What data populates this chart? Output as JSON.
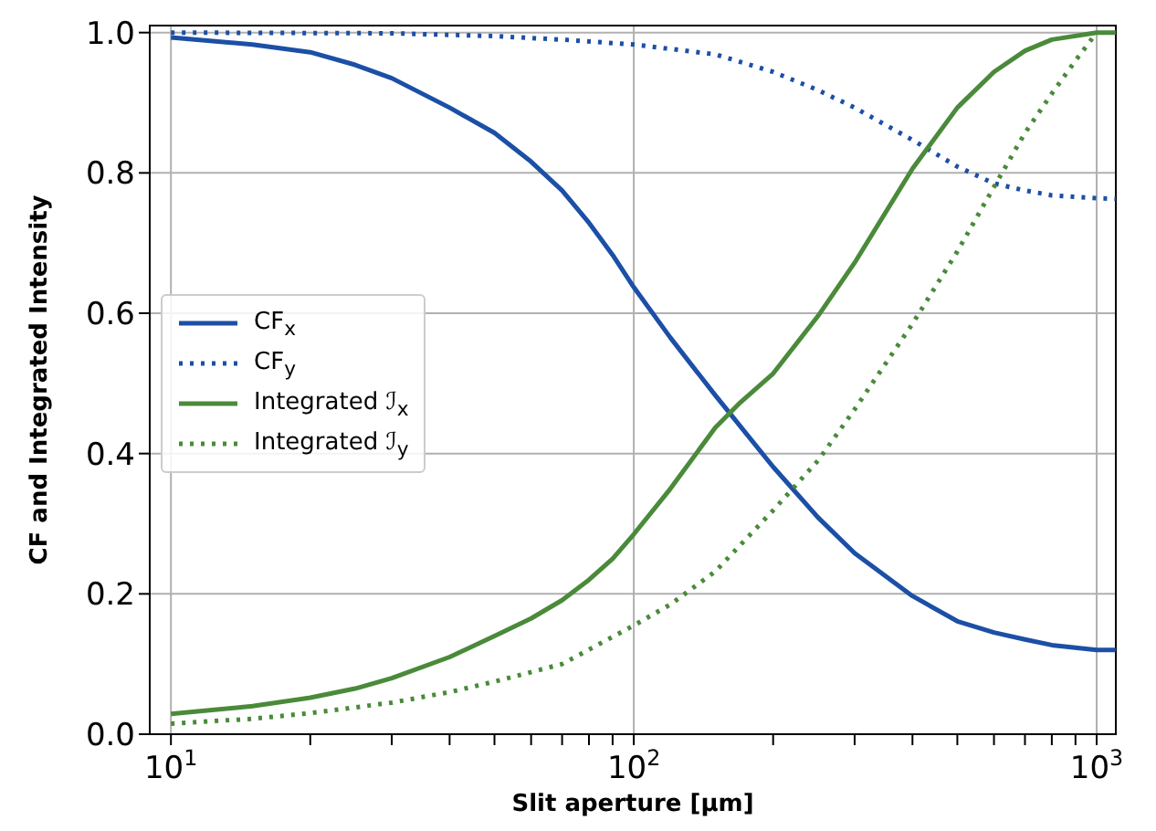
{
  "chart_data": {
    "type": "line",
    "xlabel": "Slit aperture [μm]",
    "ylabel": "CF and Integrated Intensity",
    "log": "x",
    "grid": true,
    "legend": "left",
    "marker": "none",
    "xlim": [
      9,
      1100
    ],
    "ylim": [
      0,
      1.01
    ],
    "xticks": [
      {
        "value": 10,
        "label": "10$^{1}$"
      },
      {
        "value": 20,
        "label": null
      },
      {
        "value": 30,
        "label": null
      },
      {
        "value": 40,
        "label": null
      },
      {
        "value": 50,
        "label": null
      },
      {
        "value": 60,
        "label": null
      },
      {
        "value": 70,
        "label": null
      },
      {
        "value": 80,
        "label": null
      },
      {
        "value": 90,
        "label": null
      },
      {
        "value": 100,
        "label": "10$^{2}$"
      },
      {
        "value": 200,
        "label": null
      },
      {
        "value": 300,
        "label": null
      },
      {
        "value": 400,
        "label": null
      },
      {
        "value": 500,
        "label": null
      },
      {
        "value": 600,
        "label": null
      },
      {
        "value": 700,
        "label": null
      },
      {
        "value": 800,
        "label": null
      },
      {
        "value": 900,
        "label": null
      },
      {
        "value": 1000,
        "label": "10$^{3}$"
      }
    ],
    "yticks": [
      {
        "value": 0,
        "label": "0.0"
      },
      0.2,
      0.4,
      0.6,
      0.8,
      {
        "value": 1,
        "label": "1.0"
      }
    ],
    "series": [
      {
        "name": "CF$_{x}$",
        "color": "#1c4fa6",
        "line_style": "solid",
        "x": [
          10,
          15,
          20,
          25,
          30,
          40,
          50,
          60,
          70,
          80,
          90,
          100,
          120,
          150,
          200,
          250,
          300,
          400,
          500,
          600,
          700,
          800,
          1000,
          1100
        ],
        "values": [
          0.993,
          0.983,
          0.972,
          0.954,
          0.935,
          0.893,
          0.857,
          0.816,
          0.775,
          0.729,
          0.683,
          0.637,
          0.565,
          0.483,
          0.381,
          0.309,
          0.258,
          0.197,
          0.161,
          0.145,
          0.135,
          0.127,
          0.12,
          0.12
        ]
      },
      {
        "name": "CF$_{y}$",
        "color": "#1c4fa6",
        "line_style": "dotted",
        "x": [
          10,
          30,
          50,
          70,
          100,
          150,
          200,
          250,
          300,
          400,
          500,
          600,
          700,
          800,
          1000,
          1100
        ],
        "values": [
          1.0,
          0.999,
          0.995,
          0.99,
          0.983,
          0.969,
          0.944,
          0.918,
          0.893,
          0.847,
          0.809,
          0.785,
          0.775,
          0.768,
          0.764,
          0.763
        ]
      },
      {
        "name": "Integrated ℐ$_{x}$",
        "color": "#4a8a3a",
        "line_style": "solid",
        "x": [
          10,
          15,
          20,
          25,
          30,
          40,
          50,
          60,
          70,
          80,
          90,
          100,
          120,
          150,
          170,
          200,
          250,
          300,
          400,
          500,
          600,
          700,
          800,
          1000,
          1100
        ],
        "values": [
          0.029,
          0.04,
          0.052,
          0.065,
          0.08,
          0.11,
          0.14,
          0.165,
          0.191,
          0.22,
          0.25,
          0.285,
          0.35,
          0.437,
          0.473,
          0.514,
          0.596,
          0.672,
          0.806,
          0.893,
          0.944,
          0.974,
          0.99,
          1.0,
          1.0
        ]
      },
      {
        "name": "Integrated ℐ$_{y}$",
        "color": "#4a8a3a",
        "line_style": "dotted",
        "x": [
          10,
          15,
          20,
          30,
          40,
          50,
          70,
          100,
          120,
          150,
          200,
          250,
          300,
          400,
          500,
          600,
          700,
          800,
          900,
          1000
        ],
        "values": [
          0.015,
          0.022,
          0.03,
          0.045,
          0.06,
          0.075,
          0.1,
          0.155,
          0.185,
          0.232,
          0.319,
          0.39,
          0.463,
          0.585,
          0.688,
          0.78,
          0.857,
          0.913,
          0.96,
          1.0
        ]
      }
    ]
  }
}
